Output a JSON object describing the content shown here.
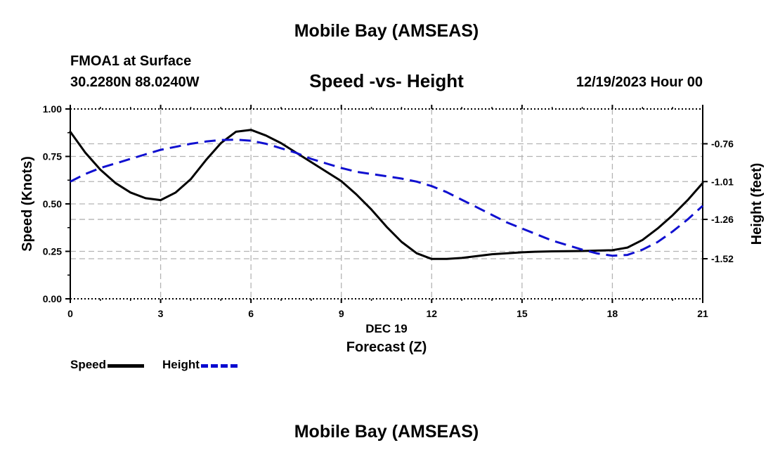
{
  "header": {
    "main_title": "Mobile Bay (AMSEAS)",
    "station_line": "FMOA1 at Surface",
    "coords_line": "30.2280N  88.0240W",
    "date_line": "12/19/2023 Hour 00",
    "footer_title": "Mobile Bay (AMSEAS)"
  },
  "legend": {
    "speed_label": "Speed",
    "height_label": "Height"
  },
  "colors": {
    "speed": "#000000",
    "height": "#1010d0",
    "grid": "#b4b4b4"
  },
  "chart_data": {
    "type": "line",
    "title": "Speed -vs- Height",
    "xlabel": "Forecast (Z)",
    "x_sublabel": "DEC 19",
    "ylabel": "Speed (Knots)",
    "y2label": "Height (feet)",
    "xlim": [
      0,
      21
    ],
    "ylim": [
      0,
      1
    ],
    "y2lim": [
      -1.785,
      -0.53
    ],
    "grid": true,
    "x_ticks": [
      0,
      3,
      6,
      9,
      12,
      15,
      18,
      21
    ],
    "x_tick_labels": [
      "0",
      "3",
      "6",
      "9",
      "12",
      "15",
      "18",
      "21"
    ],
    "y_ticks": [
      0,
      0.25,
      0.5,
      0.75,
      1.0
    ],
    "y_tick_labels": [
      "0.00",
      "0.25",
      "0.50",
      "0.75",
      "1.00"
    ],
    "y2_ticks": [
      -0.76,
      -1.01,
      -1.26,
      -1.52
    ],
    "y2_tick_labels": [
      "-0.76",
      "-1.01",
      "-1.26",
      "-1.52"
    ],
    "series": [
      {
        "name": "Speed",
        "axis": "left",
        "style": "solid",
        "x": [
          0,
          0.5,
          1,
          1.5,
          2,
          2.5,
          3,
          3.5,
          4,
          4.5,
          5,
          5.5,
          6,
          6.5,
          7,
          7.5,
          8,
          8.5,
          9,
          9.5,
          10,
          10.5,
          11,
          11.5,
          12,
          12.5,
          13,
          13.5,
          14,
          14.5,
          15,
          15.5,
          16,
          16.5,
          17,
          17.5,
          18,
          18.5,
          19,
          19.5,
          20,
          20.5,
          21
        ],
        "values": [
          0.88,
          0.77,
          0.68,
          0.61,
          0.56,
          0.53,
          0.52,
          0.56,
          0.63,
          0.73,
          0.82,
          0.88,
          0.89,
          0.86,
          0.82,
          0.77,
          0.72,
          0.67,
          0.62,
          0.55,
          0.47,
          0.38,
          0.3,
          0.24,
          0.21,
          0.21,
          0.215,
          0.225,
          0.235,
          0.24,
          0.245,
          0.248,
          0.25,
          0.251,
          0.252,
          0.254,
          0.256,
          0.27,
          0.31,
          0.37,
          0.44,
          0.52,
          0.61
        ]
      },
      {
        "name": "Height",
        "axis": "right",
        "style": "dashed",
        "x": [
          0,
          0.5,
          1,
          1.5,
          2,
          2.5,
          3,
          3.5,
          4,
          4.5,
          5,
          5.5,
          6,
          6.5,
          7,
          7.5,
          8,
          8.5,
          9,
          9.5,
          10,
          10.5,
          11,
          11.5,
          12,
          12.5,
          13,
          13.5,
          14,
          14.5,
          15,
          15.5,
          16,
          16.5,
          17,
          17.5,
          18,
          18.5,
          19,
          19.5,
          20,
          20.5,
          21
        ],
        "values": [
          -1.01,
          -0.96,
          -0.92,
          -0.89,
          -0.86,
          -0.83,
          -0.8,
          -0.78,
          -0.76,
          -0.745,
          -0.735,
          -0.733,
          -0.74,
          -0.76,
          -0.79,
          -0.82,
          -0.86,
          -0.89,
          -0.92,
          -0.945,
          -0.96,
          -0.975,
          -0.99,
          -1.01,
          -1.04,
          -1.08,
          -1.13,
          -1.18,
          -1.23,
          -1.28,
          -1.32,
          -1.36,
          -1.4,
          -1.43,
          -1.46,
          -1.485,
          -1.5,
          -1.495,
          -1.46,
          -1.41,
          -1.34,
          -1.26,
          -1.17
        ]
      }
    ]
  }
}
